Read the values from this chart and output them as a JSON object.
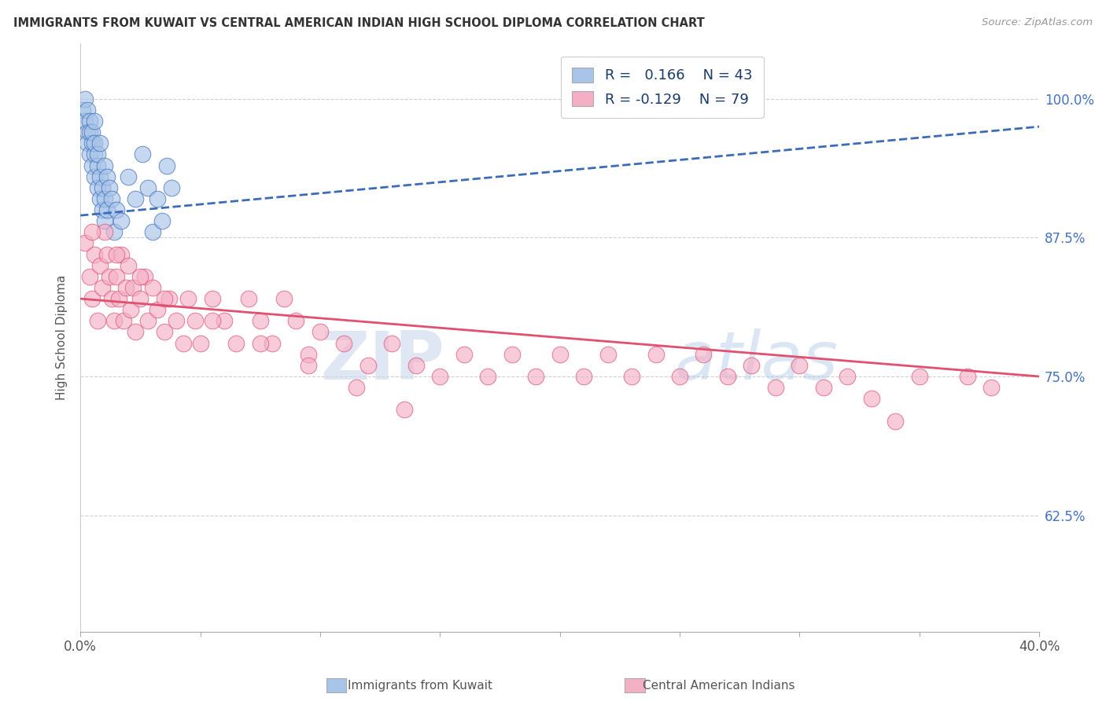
{
  "title": "IMMIGRANTS FROM KUWAIT VS CENTRAL AMERICAN INDIAN HIGH SCHOOL DIPLOMA CORRELATION CHART",
  "source": "Source: ZipAtlas.com",
  "ylabel": "High School Diploma",
  "x_min": 0.0,
  "x_max": 0.4,
  "y_min": 0.52,
  "y_max": 1.05,
  "x_ticks": [
    0.0,
    0.05,
    0.1,
    0.15,
    0.2,
    0.25,
    0.3,
    0.35,
    0.4
  ],
  "x_tick_labels": [
    "0.0%",
    "",
    "",
    "",
    "",
    "",
    "",
    "",
    "40.0%"
  ],
  "y_ticks": [
    0.625,
    0.75,
    0.875,
    1.0
  ],
  "y_tick_labels": [
    "62.5%",
    "75.0%",
    "87.5%",
    "100.0%"
  ],
  "legend_labels": [
    "Immigrants from Kuwait",
    "Central American Indians"
  ],
  "legend_R": [
    "0.166",
    "-0.129"
  ],
  "legend_N": [
    "43",
    "79"
  ],
  "blue_color": "#a8c4e8",
  "pink_color": "#f4afc5",
  "blue_line_color": "#3c6bba",
  "pink_line_color": "#e05070",
  "blue_scatter_x": [
    0.001,
    0.002,
    0.002,
    0.003,
    0.003,
    0.003,
    0.004,
    0.004,
    0.004,
    0.005,
    0.005,
    0.005,
    0.006,
    0.006,
    0.006,
    0.006,
    0.007,
    0.007,
    0.007,
    0.008,
    0.008,
    0.008,
    0.009,
    0.009,
    0.01,
    0.01,
    0.01,
    0.011,
    0.011,
    0.012,
    0.013,
    0.014,
    0.015,
    0.017,
    0.02,
    0.023,
    0.026,
    0.028,
    0.03,
    0.032,
    0.034,
    0.036,
    0.038
  ],
  "blue_scatter_y": [
    0.99,
    1.0,
    0.98,
    0.97,
    0.96,
    0.99,
    0.95,
    0.98,
    0.97,
    0.96,
    0.94,
    0.97,
    0.95,
    0.93,
    0.96,
    0.98,
    0.94,
    0.92,
    0.95,
    0.93,
    0.91,
    0.96,
    0.92,
    0.9,
    0.94,
    0.91,
    0.89,
    0.93,
    0.9,
    0.92,
    0.91,
    0.88,
    0.9,
    0.89,
    0.93,
    0.91,
    0.95,
    0.92,
    0.88,
    0.91,
    0.89,
    0.94,
    0.92
  ],
  "pink_scatter_x": [
    0.002,
    0.004,
    0.005,
    0.006,
    0.007,
    0.008,
    0.009,
    0.01,
    0.011,
    0.012,
    0.013,
    0.014,
    0.015,
    0.016,
    0.017,
    0.018,
    0.019,
    0.02,
    0.021,
    0.022,
    0.023,
    0.025,
    0.027,
    0.028,
    0.03,
    0.032,
    0.035,
    0.037,
    0.04,
    0.043,
    0.045,
    0.048,
    0.05,
    0.055,
    0.06,
    0.065,
    0.07,
    0.075,
    0.08,
    0.085,
    0.09,
    0.095,
    0.1,
    0.11,
    0.12,
    0.13,
    0.14,
    0.15,
    0.16,
    0.17,
    0.18,
    0.19,
    0.2,
    0.21,
    0.22,
    0.23,
    0.24,
    0.25,
    0.26,
    0.27,
    0.28,
    0.29,
    0.3,
    0.31,
    0.32,
    0.33,
    0.34,
    0.35,
    0.37,
    0.38,
    0.005,
    0.015,
    0.025,
    0.035,
    0.055,
    0.075,
    0.095,
    0.115,
    0.135
  ],
  "pink_scatter_y": [
    0.87,
    0.84,
    0.82,
    0.86,
    0.8,
    0.85,
    0.83,
    0.88,
    0.86,
    0.84,
    0.82,
    0.8,
    0.84,
    0.82,
    0.86,
    0.8,
    0.83,
    0.85,
    0.81,
    0.83,
    0.79,
    0.82,
    0.84,
    0.8,
    0.83,
    0.81,
    0.79,
    0.82,
    0.8,
    0.78,
    0.82,
    0.8,
    0.78,
    0.82,
    0.8,
    0.78,
    0.82,
    0.8,
    0.78,
    0.82,
    0.8,
    0.77,
    0.79,
    0.78,
    0.76,
    0.78,
    0.76,
    0.75,
    0.77,
    0.75,
    0.77,
    0.75,
    0.77,
    0.75,
    0.77,
    0.75,
    0.77,
    0.75,
    0.77,
    0.75,
    0.76,
    0.74,
    0.76,
    0.74,
    0.75,
    0.73,
    0.71,
    0.75,
    0.75,
    0.74,
    0.88,
    0.86,
    0.84,
    0.82,
    0.8,
    0.78,
    0.76,
    0.74,
    0.72
  ],
  "blue_line_x": [
    0.0,
    0.4
  ],
  "blue_line_y": [
    0.895,
    0.975
  ],
  "pink_line_x": [
    0.0,
    0.4
  ],
  "pink_line_y": [
    0.82,
    0.75
  ],
  "watermark_zip": "ZIP",
  "watermark_atlas": "atlas",
  "background_color": "#ffffff",
  "grid_color": "#d0d0d0"
}
